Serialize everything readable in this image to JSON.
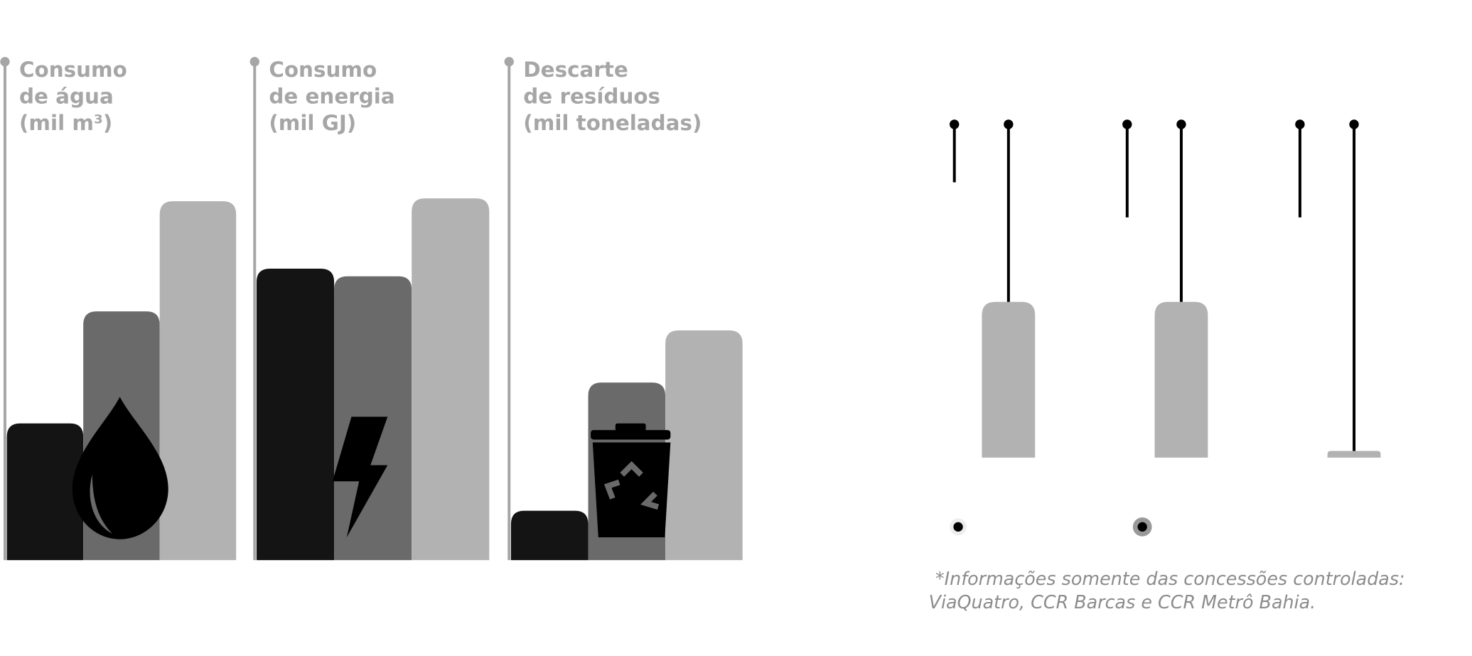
{
  "chart_data": [
    {
      "type": "bar",
      "title": [
        "Consumo",
        "de água",
        "(mil m³)"
      ],
      "values": [
        144,
        262,
        378
      ],
      "colors": [
        "#141414",
        "#6a6a6a",
        "#b2b2b2"
      ],
      "ylim": [
        0,
        525
      ]
    },
    {
      "type": "bar",
      "title": [
        "Consumo",
        "de energia",
        "(mil GJ)"
      ],
      "values": [
        307,
        299,
        381
      ],
      "colors": [
        "#141414",
        "#6a6a6a",
        "#b2b2b2"
      ],
      "ylim": [
        0,
        525
      ]
    },
    {
      "type": "bar",
      "title": [
        "Descarte",
        "de resíduos",
        "(mil toneladas)"
      ],
      "values": [
        52,
        187,
        242
      ],
      "colors": [
        "#141414",
        "#6a6a6a",
        "#b2b2b2"
      ],
      "ylim": [
        0,
        525
      ]
    },
    {
      "type": "bar",
      "values": [
        164,
        164,
        7
      ],
      "color": "#b2b2b2",
      "ylim": [
        0,
        351
      ]
    }
  ],
  "footnote": [
    "*Informações somente das concessões controladas:",
    "ViaQuatro, CCR Barcas e CCR Metrô Bahia."
  ]
}
